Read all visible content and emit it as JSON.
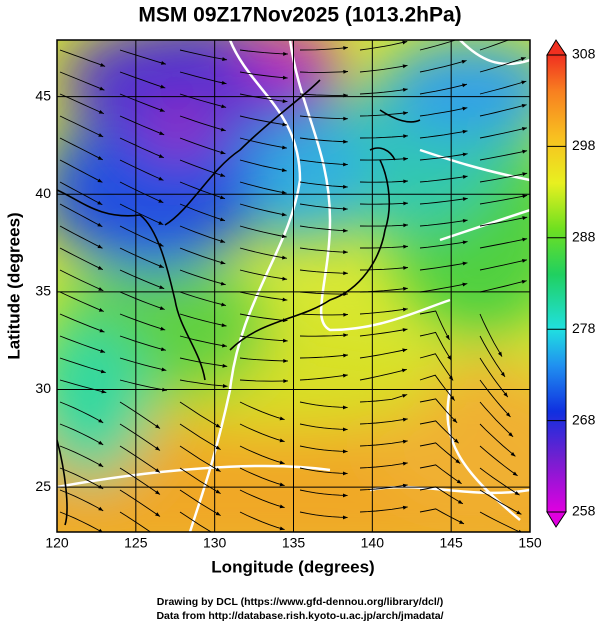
{
  "map": {
    "title": "MSM 09Z17Nov2025 (1013.2hPa)",
    "x_label": "Longitude (degrees)",
    "y_label": "Latitude  (degrees)",
    "xlim": [
      120,
      150
    ],
    "ylim": [
      22.7,
      47.9
    ],
    "xticks": [
      120,
      125,
      130,
      135,
      140,
      145,
      150
    ],
    "yticks": [
      25,
      30,
      35,
      40,
      45
    ],
    "colorbar": {
      "lim": [
        258,
        308
      ],
      "ticks": [
        258,
        268,
        278,
        288,
        298,
        308
      ]
    },
    "footer": [
      "Drawing by DCL (https://www.gfd-dennou.org/library/dcl/)",
      "Data from http://database.rish.kyoto-u.ac.jp/arch/jmadata/"
    ]
  }
}
